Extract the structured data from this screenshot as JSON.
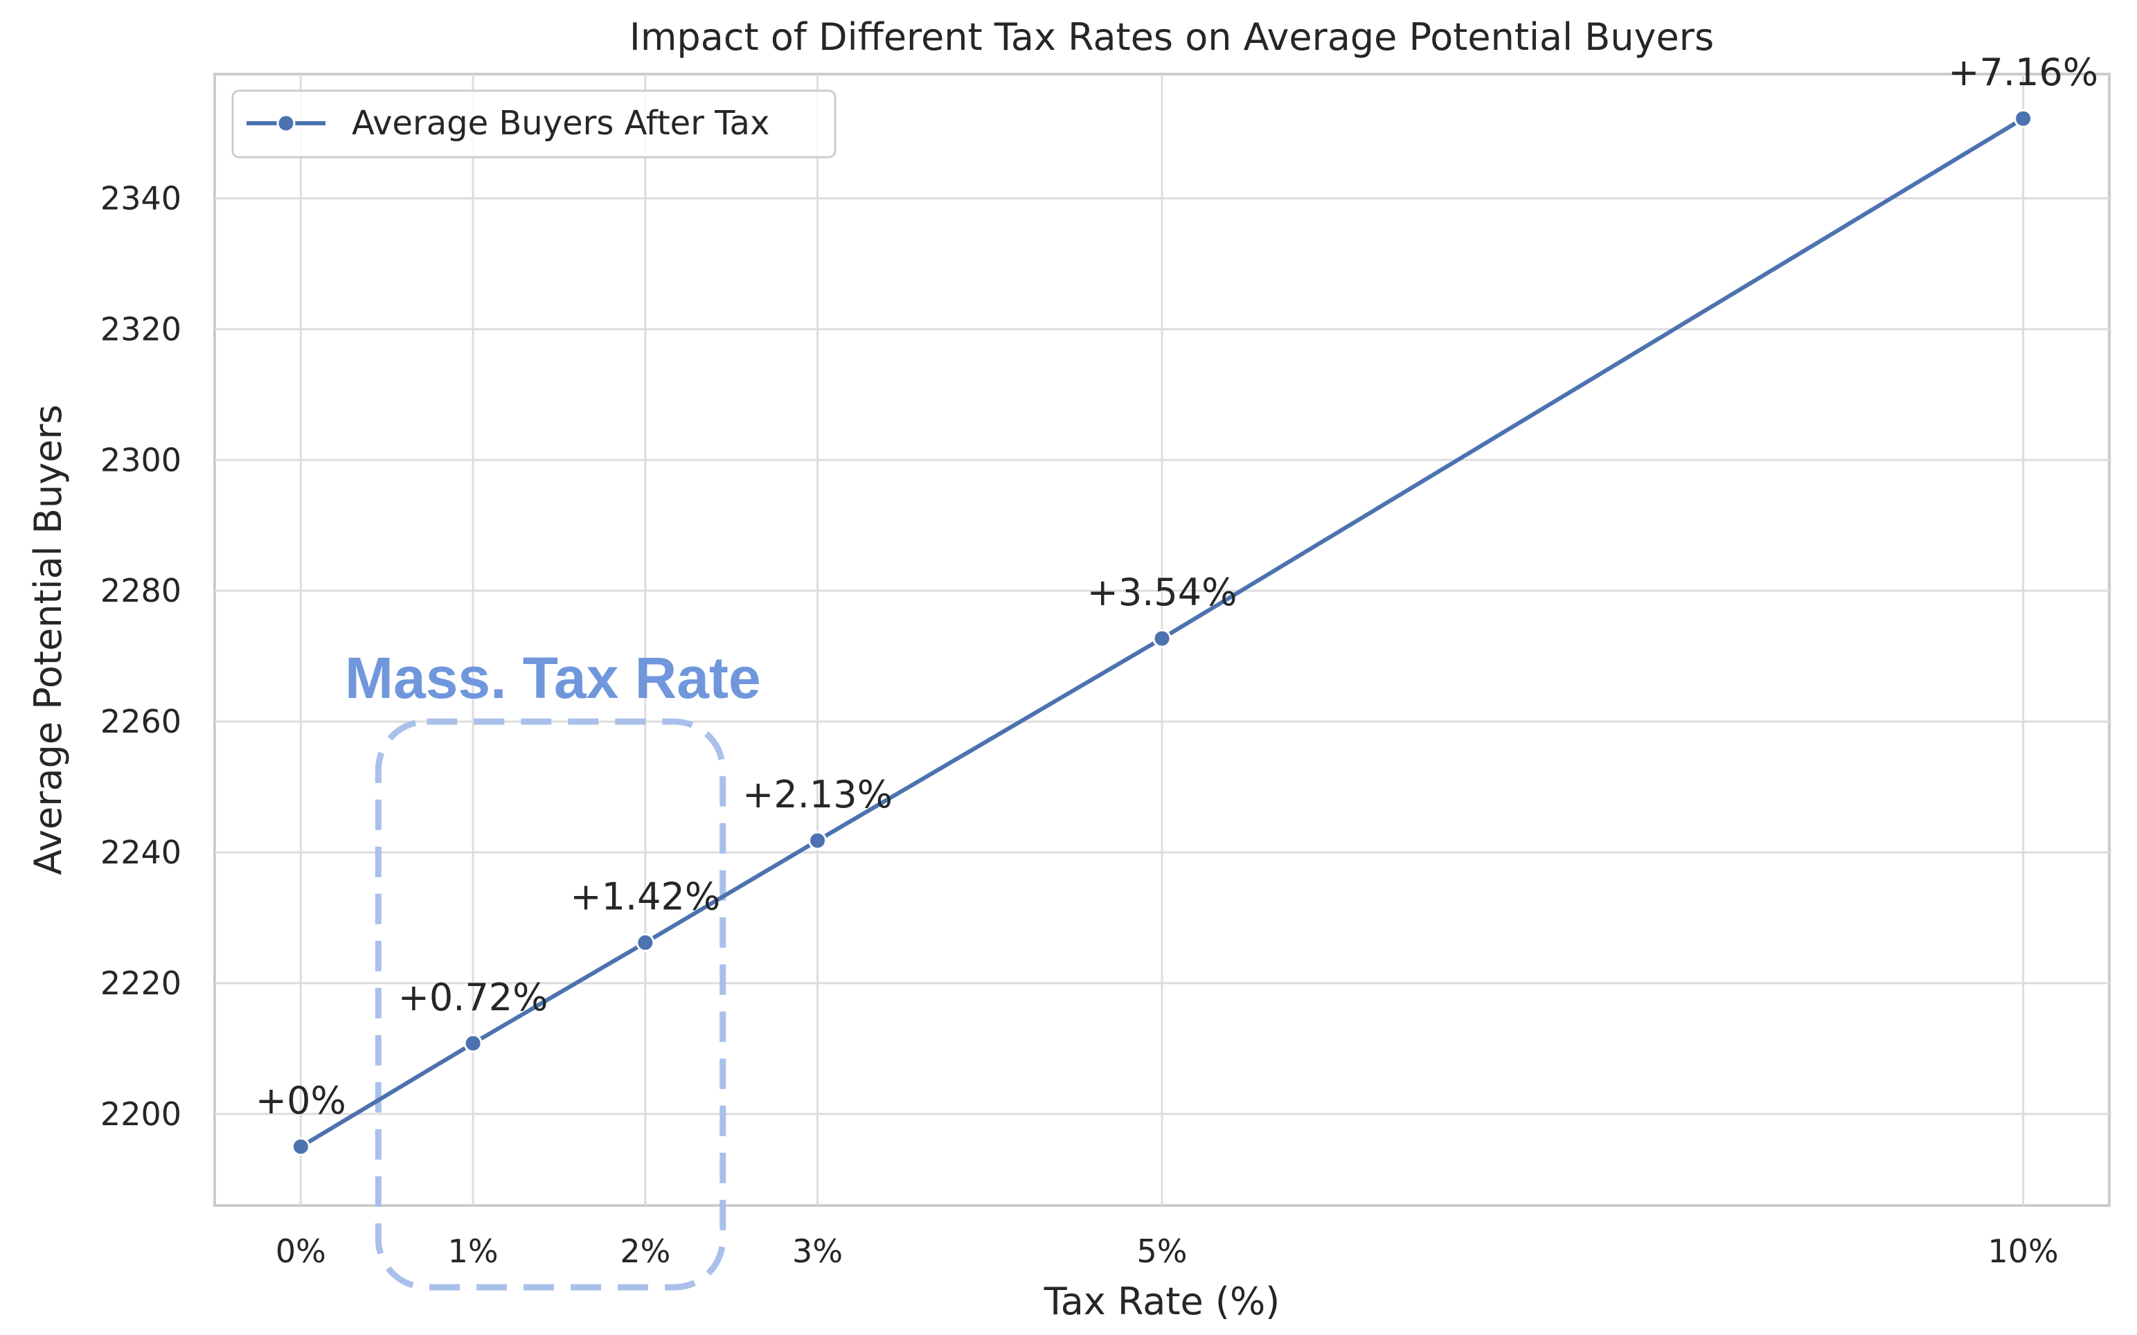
{
  "chart_data": {
    "type": "line",
    "title": "Impact of Different Tax Rates on Average Potential Buyers",
    "xlabel": "Tax Rate (%)",
    "ylabel": "Average Potential Buyers",
    "x": [
      0,
      1,
      2,
      3,
      5,
      10
    ],
    "x_tick_labels": [
      "0%",
      "1%",
      "2%",
      "3%",
      "5%",
      "10%"
    ],
    "xlim": [
      -0.5,
      10.5
    ],
    "ylim": [
      2186,
      2359
    ],
    "y_ticks": [
      2200,
      2220,
      2240,
      2260,
      2280,
      2300,
      2320,
      2340
    ],
    "grid": true,
    "legend": {
      "position": "top-left",
      "entries": [
        "Average Buyers After Tax"
      ]
    },
    "series": [
      {
        "name": "Average Buyers After Tax",
        "color": "#4c72b0",
        "values": [
          2195,
          2210.8,
          2226.2,
          2241.8,
          2272.7,
          2352.2
        ],
        "labels": [
          "+0%",
          "+0.72%",
          "+1.42%",
          "+2.13%",
          "+3.54%",
          "+7.16%"
        ]
      }
    ],
    "annotation": {
      "text": "Mass. Tax Rate",
      "color": "#7096dc",
      "box_color": "#a9c0ea",
      "x_range": [
        0.45,
        2.45
      ],
      "y_range": [
        2173.5,
        2260
      ]
    }
  }
}
